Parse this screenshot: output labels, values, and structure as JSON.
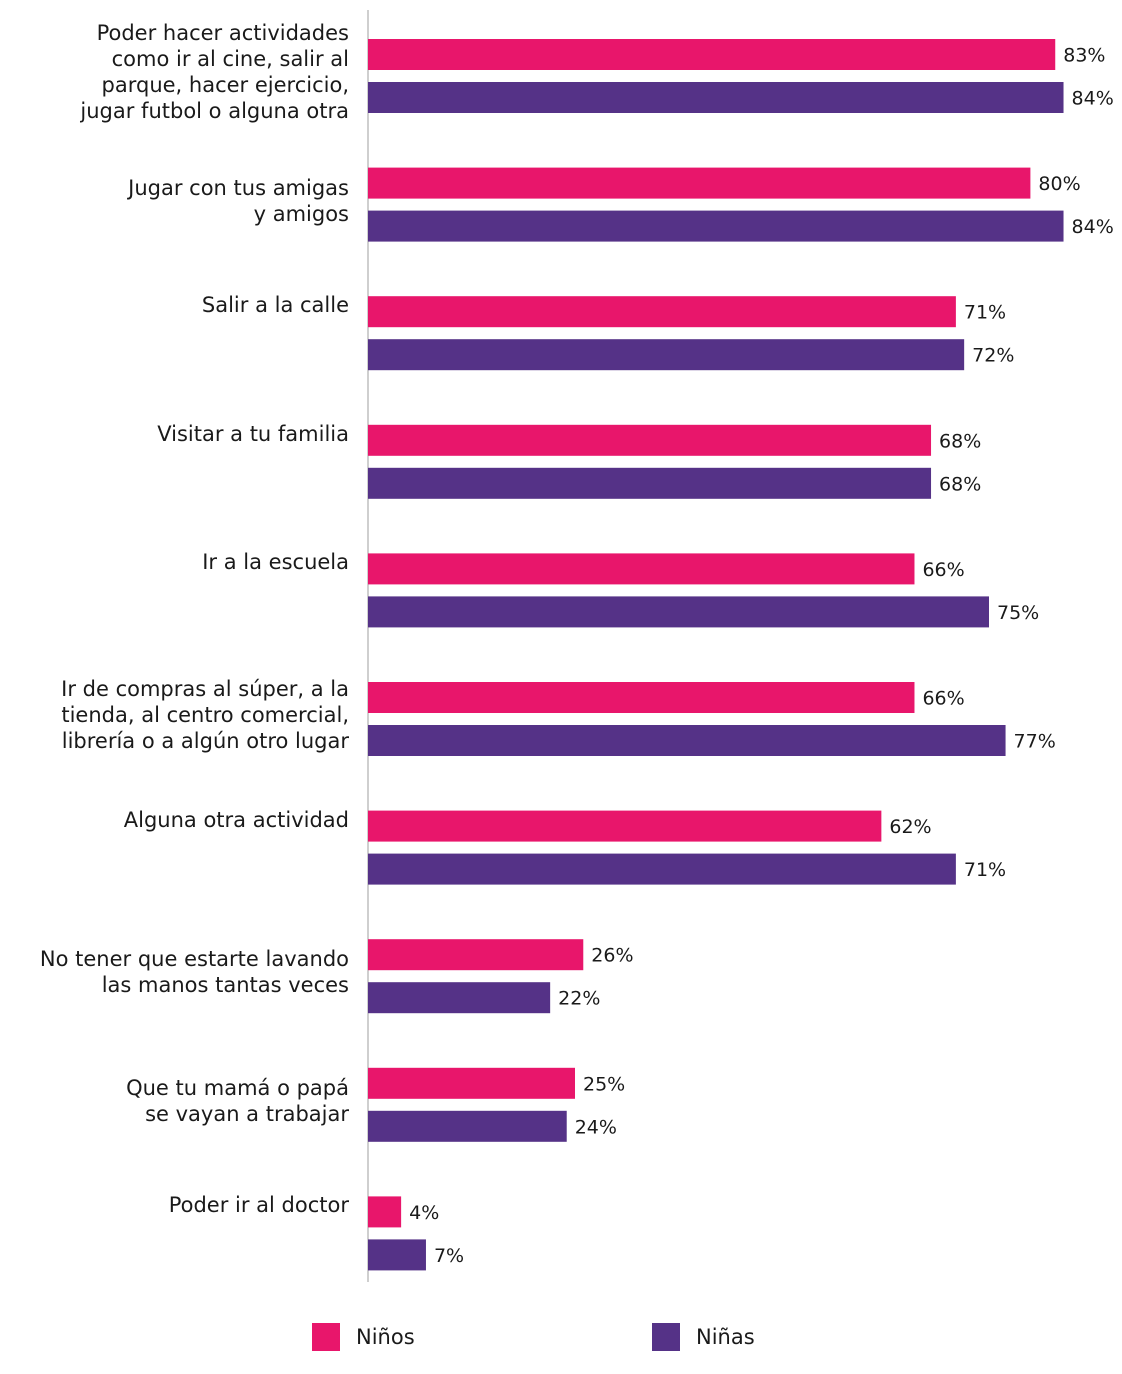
{
  "chart_data": {
    "type": "bar",
    "orientation": "horizontal",
    "categories": [
      [
        "Poder hacer actividades",
        "como ir al cine, salir al",
        "parque, hacer ejercicio,",
        "jugar futbol o alguna otra"
      ],
      [
        "Jugar con tus amigas",
        "y amigos"
      ],
      [
        "Salir a la calle"
      ],
      [
        "Visitar a tu familia"
      ],
      [
        "Ir a la escuela"
      ],
      [
        "Ir de compras al súper, a la",
        "tienda, al centro comercial,",
        "librería o a algún otro lugar"
      ],
      [
        "Alguna otra actividad"
      ],
      [
        "No tener que estarte lavando",
        "las manos tantas veces"
      ],
      [
        "Que tu mamá o papá",
        "se vayan a trabajar"
      ],
      [
        "Poder ir al doctor"
      ]
    ],
    "series": [
      {
        "name": "Niños",
        "color": "#E8166B",
        "values": [
          83,
          80,
          71,
          68,
          66,
          66,
          62,
          26,
          25,
          4
        ],
        "labels": [
          "83%",
          "80%",
          "71%",
          "68%",
          "66%",
          "66%",
          "62%",
          "26%",
          "25%",
          "4%"
        ]
      },
      {
        "name": "Niñas",
        "color": "#553287",
        "values": [
          84,
          84,
          72,
          68,
          75,
          77,
          71,
          22,
          24,
          7
        ],
        "labels": [
          "84%",
          "84%",
          "72%",
          "68%",
          "75%",
          "77%",
          "71%",
          "22%",
          "24%",
          "7%"
        ]
      }
    ],
    "xlim": [
      0,
      100
    ],
    "grid": false,
    "legend_position": "bottom"
  }
}
